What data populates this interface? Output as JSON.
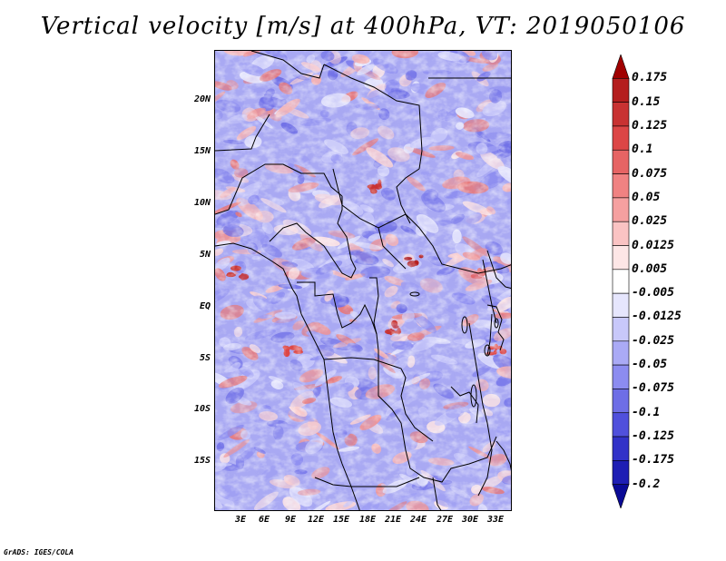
{
  "title": "Vertical velocity [m/s] at 400hPa, VT: 2019050106",
  "map": {
    "variable": "Vertical velocity",
    "units": "m/s",
    "level": "400hPa",
    "valid_time": "2019050106",
    "lat_labels": [
      "20N",
      "15N",
      "10N",
      "5N",
      "EQ",
      "5S",
      "10S",
      "15S"
    ],
    "lon_labels": [
      "3E",
      "6E",
      "9E",
      "12E",
      "15E",
      "18E",
      "21E",
      "24E",
      "27E",
      "30E",
      "33E"
    ]
  },
  "colorbar": {
    "labels": [
      "0.175",
      "0.15",
      "0.125",
      "0.1",
      "0.075",
      "0.05",
      "0.025",
      "0.0125",
      "0.005",
      "-0.005",
      "-0.0125",
      "-0.025",
      "-0.05",
      "-0.075",
      "-0.1",
      "-0.125",
      "-0.175",
      "-0.2"
    ],
    "colors": [
      "#a00000",
      "#b41e1e",
      "#c83232",
      "#dc4646",
      "#e66464",
      "#f08282",
      "#f5a0a0",
      "#fac3c3",
      "#fde6e6",
      "#ffffff",
      "#e6e6fd",
      "#c8c8fa",
      "#aaaaf5",
      "#8c8cf0",
      "#6e6ee6",
      "#5050dc",
      "#3232c8",
      "#1e1eb4",
      "#0a0a96"
    ]
  },
  "footer": "GrADS: IGES/COLA"
}
